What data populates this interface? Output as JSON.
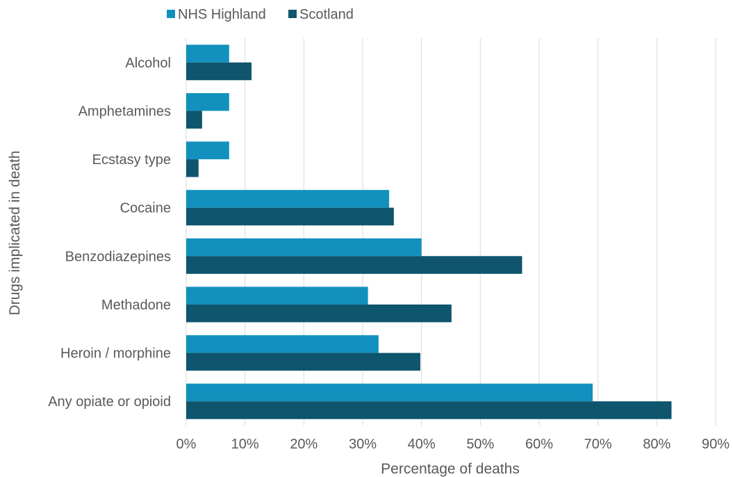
{
  "chart_data": {
    "type": "bar",
    "orientation": "horizontal",
    "categories": [
      "Alcohol",
      "Amphetamines",
      "Ecstasy type",
      "Cocaine",
      "Benzodiazepines",
      "Methadone",
      "Heroin / morphine",
      "Any opiate or opioid"
    ],
    "series": [
      {
        "name": "NHS Highland",
        "color": "#1391be",
        "values": [
          7.3,
          7.3,
          7.3,
          34.5,
          40.0,
          30.9,
          32.7,
          69.1
        ]
      },
      {
        "name": "Scotland",
        "color": "#0e556d",
        "values": [
          11.1,
          2.7,
          2.1,
          35.3,
          57.1,
          45.1,
          39.8,
          82.5
        ]
      }
    ],
    "xlabel": "Percentage of deaths",
    "ylabel": "Drugs implicated in death",
    "xlim": [
      0,
      90
    ],
    "xticks": [
      "0%",
      "10%",
      "20%",
      "30%",
      "40%",
      "50%",
      "60%",
      "70%",
      "80%",
      "90%"
    ],
    "grid": true,
    "legend_position": "top"
  }
}
